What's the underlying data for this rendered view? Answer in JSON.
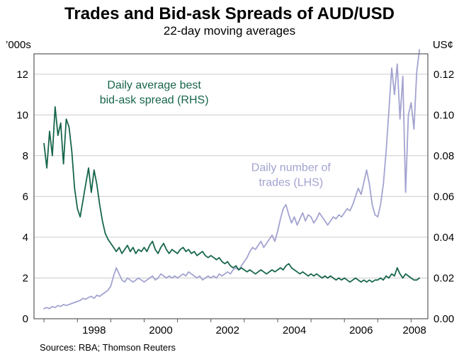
{
  "chart_data": {
    "type": "line",
    "title": "Trades and Bid-ask Spreads of AUD/USD",
    "subtitle": "22-day moving averages",
    "source": "Sources: RBA; Thomson Reuters",
    "grid": {
      "on": true,
      "color": "#cbcbcb"
    },
    "frame_color": "#58595b",
    "legend_position": "inline-annotations",
    "left_axis": {
      "unit_label": "’000s",
      "ticks": [
        0,
        2,
        4,
        6,
        8,
        10,
        12
      ],
      "range": [
        0,
        13
      ]
    },
    "right_axis": {
      "unit_label": "US¢",
      "ticks": [
        "0.00",
        "0.02",
        "0.04",
        "0.06",
        "0.08",
        "0.10",
        "0.12"
      ],
      "range": [
        0,
        0.13
      ]
    },
    "x_axis": {
      "range": [
        1996.7,
        2008.5
      ],
      "tick_years": [
        1997,
        1998,
        1999,
        2000,
        2001,
        2002,
        2003,
        2004,
        2005,
        2006,
        2007,
        2008
      ],
      "label_years": [
        1998,
        2000,
        2002,
        2004,
        2006,
        2008
      ]
    },
    "x_start": 1997.0,
    "x_step": 0.0833333,
    "x_end": 2008.25,
    "series": [
      {
        "name": "Daily number of trades (LHS)",
        "axis": "left",
        "units": "thousands of trades",
        "color": "#a3a3d1",
        "label_lines": [
          "Daily number of",
          "trades (LHS)"
        ],
        "label_pos": {
          "x": 2004.4,
          "y": 7.25
        },
        "values": [
          0.5,
          0.55,
          0.5,
          0.6,
          0.55,
          0.65,
          0.6,
          0.7,
          0.65,
          0.7,
          0.75,
          0.8,
          0.85,
          0.9,
          1.0,
          0.95,
          1.05,
          1.1,
          1.0,
          1.15,
          1.1,
          1.2,
          1.3,
          1.4,
          1.6,
          2.1,
          2.5,
          2.2,
          1.9,
          1.8,
          2.0,
          1.9,
          1.8,
          1.9,
          2.0,
          1.9,
          1.8,
          1.9,
          2.0,
          2.1,
          1.9,
          2.0,
          2.2,
          2.1,
          2.0,
          2.1,
          2.0,
          2.1,
          2.0,
          2.1,
          2.2,
          2.1,
          2.3,
          2.2,
          2.1,
          2.0,
          2.1,
          1.9,
          2.0,
          2.1,
          2.0,
          2.1,
          2.0,
          2.2,
          2.1,
          2.2,
          2.3,
          2.2,
          2.4,
          2.5,
          2.4,
          2.6,
          2.8,
          3.0,
          3.3,
          3.5,
          3.4,
          3.6,
          3.8,
          3.5,
          3.7,
          3.9,
          4.1,
          3.8,
          4.3,
          4.9,
          5.4,
          5.6,
          5.1,
          4.7,
          5.0,
          4.6,
          4.9,
          5.2,
          4.8,
          5.1,
          5.0,
          4.7,
          4.9,
          5.2,
          5.0,
          4.8,
          4.6,
          4.8,
          5.0,
          4.9,
          5.1,
          5.0,
          5.2,
          5.4,
          5.3,
          5.6,
          6.0,
          6.4,
          6.1,
          6.7,
          7.3,
          6.6,
          5.6,
          5.1,
          5.0,
          5.6,
          6.6,
          8.2,
          10.2,
          12.3,
          11.0,
          12.5,
          9.8,
          11.9,
          6.2,
          10.0,
          10.6,
          9.3,
          12.1,
          13.2
        ]
      },
      {
        "name": "Daily average best bid-ask spread (RHS)",
        "axis": "right",
        "units": "US cents",
        "color": "#17664a",
        "label_lines": [
          "Daily average best",
          "bid-ask spread (RHS)"
        ],
        "label_pos": {
          "x": 2000.3,
          "y": 0.113
        },
        "values": [
          0.086,
          0.074,
          0.092,
          0.08,
          0.104,
          0.09,
          0.096,
          0.076,
          0.098,
          0.094,
          0.082,
          0.064,
          0.054,
          0.05,
          0.058,
          0.066,
          0.074,
          0.062,
          0.073,
          0.066,
          0.056,
          0.048,
          0.042,
          0.039,
          0.037,
          0.035,
          0.033,
          0.035,
          0.032,
          0.034,
          0.036,
          0.033,
          0.035,
          0.032,
          0.034,
          0.033,
          0.035,
          0.033,
          0.036,
          0.038,
          0.034,
          0.032,
          0.035,
          0.037,
          0.034,
          0.032,
          0.034,
          0.033,
          0.032,
          0.034,
          0.035,
          0.033,
          0.034,
          0.032,
          0.033,
          0.031,
          0.032,
          0.033,
          0.031,
          0.03,
          0.031,
          0.03,
          0.029,
          0.03,
          0.028,
          0.027,
          0.028,
          0.026,
          0.025,
          0.026,
          0.024,
          0.025,
          0.024,
          0.023,
          0.024,
          0.023,
          0.022,
          0.023,
          0.024,
          0.023,
          0.022,
          0.023,
          0.024,
          0.023,
          0.024,
          0.025,
          0.024,
          0.026,
          0.027,
          0.025,
          0.024,
          0.023,
          0.022,
          0.023,
          0.022,
          0.021,
          0.022,
          0.021,
          0.022,
          0.021,
          0.02,
          0.021,
          0.02,
          0.021,
          0.02,
          0.019,
          0.02,
          0.019,
          0.02,
          0.019,
          0.018,
          0.019,
          0.02,
          0.019,
          0.018,
          0.019,
          0.018,
          0.019,
          0.018,
          0.019,
          0.019,
          0.02,
          0.019,
          0.021,
          0.02,
          0.022,
          0.021,
          0.025,
          0.022,
          0.02,
          0.022,
          0.021,
          0.02,
          0.019,
          0.019,
          0.02
        ]
      }
    ]
  }
}
